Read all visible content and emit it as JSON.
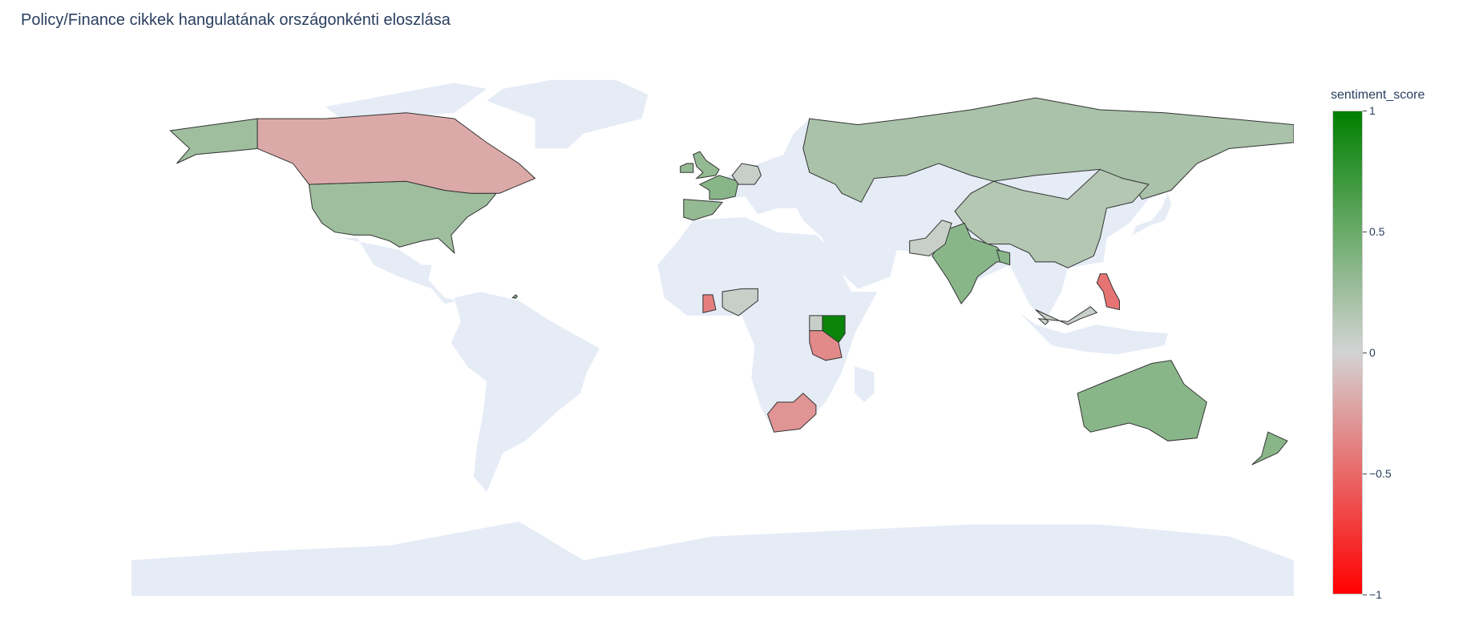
{
  "title": "Policy/Finance cikkek hangulatának országonkénti eloszlása",
  "colorbar": {
    "title": "sentiment_score",
    "range": [
      -1,
      1
    ],
    "ticks": [
      {
        "value": 1,
        "label": "1"
      },
      {
        "value": 0.5,
        "label": "0.5"
      },
      {
        "value": 0,
        "label": "0"
      },
      {
        "value": -0.5,
        "label": "−0.5"
      },
      {
        "value": -1,
        "label": "−1"
      }
    ],
    "colorscale": [
      {
        "stop": 0,
        "color": "#ff0000"
      },
      {
        "stop": 0.5,
        "color": "#d3d3d3"
      },
      {
        "stop": 1,
        "color": "#008000"
      }
    ]
  },
  "map": {
    "projection": "equirectangular",
    "land_color": "#e5ecf6",
    "border_color": "#333333"
  },
  "chart_data": {
    "type": "choropleth",
    "title": "Policy/Finance cikkek hangulatának országonkénti eloszlása",
    "color_variable": "sentiment_score",
    "color_range": [
      -1,
      1
    ],
    "countries": [
      {
        "name": "United States",
        "value": 0.25
      },
      {
        "name": "Canada",
        "value": -0.2
      },
      {
        "name": "United Kingdom",
        "value": 0.3
      },
      {
        "name": "Ireland",
        "value": 0.3
      },
      {
        "name": "France",
        "value": 0.35
      },
      {
        "name": "Spain",
        "value": 0.3
      },
      {
        "name": "Germany",
        "value": 0.05
      },
      {
        "name": "Russia",
        "value": 0.2
      },
      {
        "name": "China",
        "value": 0.15
      },
      {
        "name": "India",
        "value": 0.35
      },
      {
        "name": "Pakistan",
        "value": 0.05
      },
      {
        "name": "Bangladesh",
        "value": 0.35
      },
      {
        "name": "Philippines",
        "value": -0.45
      },
      {
        "name": "Malaysia",
        "value": 0.05
      },
      {
        "name": "Australia",
        "value": 0.35
      },
      {
        "name": "New Zealand",
        "value": 0.35
      },
      {
        "name": "Kenya",
        "value": 0.95
      },
      {
        "name": "Tanzania",
        "value": -0.35
      },
      {
        "name": "Uganda",
        "value": 0.05
      },
      {
        "name": "Nigeria",
        "value": 0.05
      },
      {
        "name": "Ghana",
        "value": -0.4
      },
      {
        "name": "South Africa",
        "value": -0.3
      },
      {
        "name": "Trinidad and Tobago",
        "value": 0.35
      }
    ]
  }
}
